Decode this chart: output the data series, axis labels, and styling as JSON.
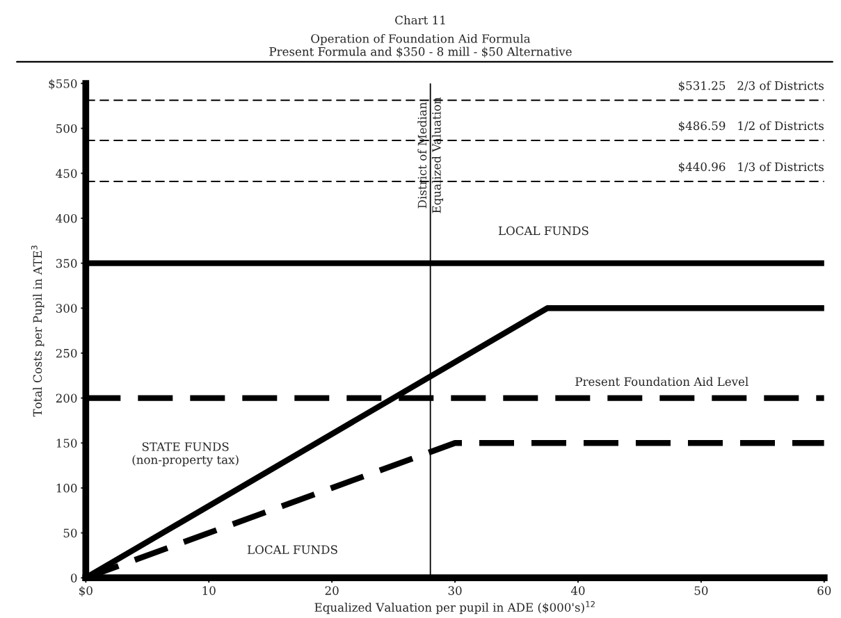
{
  "chart_data": {
    "type": "line",
    "title": "Chart 11",
    "subtitle": "Operation of Foundation Aid Formula\nPresent Formula and $350 - 8 mill - $50 Alternative",
    "xlabel": "Equalized Valuation per pupil in ADE ($000's)$^{12}$",
    "ylabel": "Total Costs per Pupil in ATE$^{3}$",
    "xlim": [
      0,
      60
    ],
    "ylim": [
      0,
      550
    ],
    "xticks": [
      {
        "value": 0,
        "label": "$0"
      },
      10,
      20,
      30,
      40,
      50,
      60
    ],
    "yticks": [
      0,
      50,
      100,
      150,
      200,
      250,
      300,
      350,
      400,
      450,
      500,
      {
        "value": 550,
        "label": "$550"
      }
    ],
    "grid": false,
    "legend": false,
    "series": [
      {
        "color": "#000000",
        "line_style": "solid",
        "x": [
          0,
          60
        ],
        "values": [
          350,
          350
        ]
      },
      {
        "color": "#000000",
        "line_style": "solid",
        "x": [
          0,
          37.5,
          60
        ],
        "values": [
          0,
          300,
          300
        ]
      },
      {
        "color": "#000000",
        "line_style": "dashed",
        "x": [
          0,
          60
        ],
        "values": [
          200,
          200
        ]
      },
      {
        "color": "#000000",
        "line_style": "dashed",
        "x": [
          0,
          30,
          60
        ],
        "values": [
          0,
          150,
          150
        ]
      }
    ],
    "ref_lines": [
      {
        "axis": "y",
        "value": 531.25,
        "label": "$531.25   2/3 of Districts",
        "line_style": "dashed",
        "color": "#000000"
      },
      {
        "axis": "y",
        "value": 486.59,
        "label": "$486.59   1/2 of Districts",
        "line_style": "dashed",
        "color": "#000000"
      },
      {
        "axis": "y",
        "value": 440.96,
        "label": "$440.96   1/3 of Districts",
        "line_style": "dashed",
        "color": "#000000"
      },
      {
        "axis": "x",
        "value": 28,
        "label": "District of Median\nEqualized Valuation",
        "line_style": "solid",
        "color": "#000000"
      }
    ],
    "annotations": [
      "LOCAL FUNDS",
      "Present Foundation Aid Level",
      "STATE FUNDS\n(non-property tax)",
      "LOCAL FUNDS"
    ]
  }
}
